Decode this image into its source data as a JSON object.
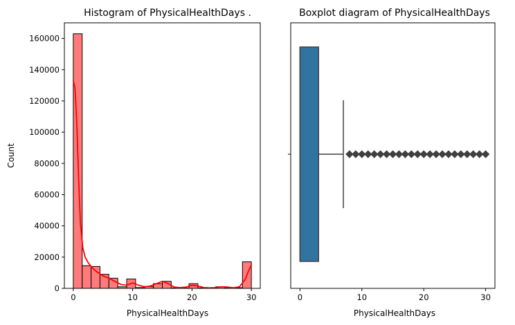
{
  "chart_data": [
    {
      "type": "histogram",
      "title": "Histogram of PhysicalHealthDays .",
      "xlabel": "PhysicalHealthDays",
      "ylabel": "Count",
      "xlim": [
        -1.5,
        31.5
      ],
      "ylim": [
        0,
        170000
      ],
      "xticks": [
        0,
        10,
        20,
        30
      ],
      "yticks": [
        0,
        20000,
        40000,
        60000,
        80000,
        100000,
        120000,
        140000,
        160000
      ],
      "bar_color": "#ff7a7a",
      "kde_color": "#ff0000",
      "bins": [
        {
          "x0": 0.0,
          "x1": 1.5,
          "count": 163000
        },
        {
          "x0": 1.5,
          "x1": 3.0,
          "count": 14500
        },
        {
          "x0": 3.0,
          "x1": 4.5,
          "count": 14000
        },
        {
          "x0": 4.5,
          "x1": 6.0,
          "count": 9000
        },
        {
          "x0": 6.0,
          "x1": 7.5,
          "count": 6500
        },
        {
          "x0": 7.5,
          "x1": 9.0,
          "count": 1000
        },
        {
          "x0": 9.0,
          "x1": 10.5,
          "count": 6000
        },
        {
          "x0": 10.5,
          "x1": 12.0,
          "count": 500
        },
        {
          "x0": 12.0,
          "x1": 13.5,
          "count": 1200
        },
        {
          "x0": 13.5,
          "x1": 15.0,
          "count": 3000
        },
        {
          "x0": 15.0,
          "x1": 16.5,
          "count": 4500
        },
        {
          "x0": 16.5,
          "x1": 18.0,
          "count": 300
        },
        {
          "x0": 18.0,
          "x1": 19.5,
          "count": 200
        },
        {
          "x0": 19.5,
          "x1": 21.0,
          "count": 3000
        },
        {
          "x0": 21.0,
          "x1": 22.5,
          "count": 300
        },
        {
          "x0": 22.5,
          "x1": 24.0,
          "count": 300
        },
        {
          "x0": 24.0,
          "x1": 25.5,
          "count": 1000
        },
        {
          "x0": 25.5,
          "x1": 27.0,
          "count": 200
        },
        {
          "x0": 27.0,
          "x1": 28.5,
          "count": 400
        },
        {
          "x0": 28.5,
          "x1": 30.0,
          "count": 17000
        }
      ],
      "kde": {
        "x": [
          0,
          0.3,
          0.6,
          0.9,
          1.2,
          1.6,
          2.0,
          2.5,
          3,
          3.5,
          4,
          5,
          6,
          7,
          8,
          9,
          10,
          11,
          12,
          13,
          14,
          15,
          16,
          17,
          18,
          19,
          20,
          21,
          22,
          23,
          24,
          25,
          26,
          27,
          28,
          29,
          29.5,
          30
        ],
        "y": [
          133000,
          128000,
          105000,
          70000,
          42000,
          26000,
          20000,
          16500,
          14000,
          12000,
          10500,
          8000,
          6500,
          4500,
          2500,
          2000,
          3500,
          2000,
          1000,
          1500,
          3000,
          4500,
          3000,
          800,
          500,
          800,
          2000,
          1500,
          500,
          300,
          500,
          1000,
          800,
          400,
          1000,
          6000,
          11000,
          15000
        ]
      }
    },
    {
      "type": "boxplot",
      "title": "Boxplot diagram of PhysicalHealthDays",
      "xlabel": "PhysicalHealthDays",
      "xlim": [
        -1.5,
        31.5
      ],
      "xticks": [
        0,
        10,
        20,
        30
      ],
      "box_color": "#3274a1",
      "min": 0,
      "q1": 0,
      "median": 0,
      "q3": 3,
      "whisker_high": 7,
      "outliers": [
        8,
        9,
        10,
        11,
        12,
        13,
        14,
        15,
        16,
        17,
        18,
        19,
        20,
        21,
        22,
        23,
        24,
        25,
        26,
        27,
        28,
        29,
        30
      ]
    }
  ]
}
